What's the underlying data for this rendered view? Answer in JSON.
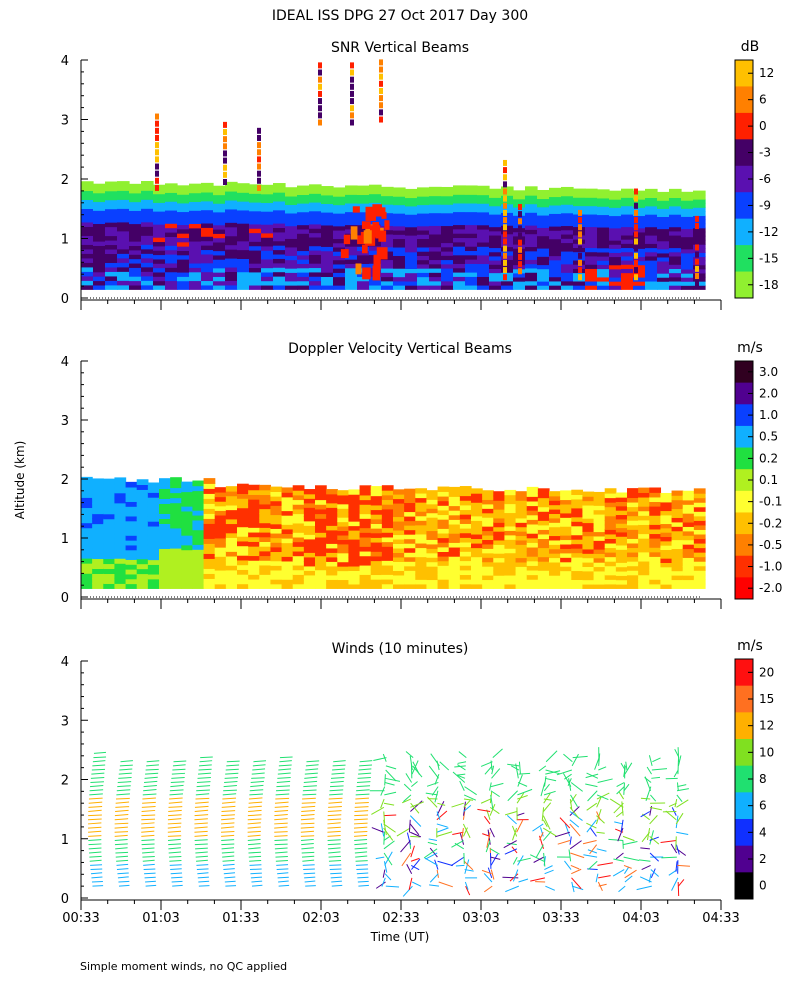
{
  "figure": {
    "title": "IDEAL ISS DPG  27 Oct 2017 Day 300",
    "ylabel": "Altitude (km)",
    "xlabel": "Time (UT)",
    "footnote": "Simple moment winds, no QC applied"
  },
  "chart_data": [
    {
      "type": "heatmap",
      "title": "SNR Vertical Beams",
      "colorbar_unit": "dB",
      "colorbar_ticks": [
        "12",
        "6",
        "0",
        "-3",
        "-6",
        "-9",
        "-12",
        "-15",
        "-18"
      ],
      "colorbar_colors": [
        "#ffc000",
        "#ff8000",
        "#ff2000",
        "#440066",
        "#5a10b0",
        "#0a40ff",
        "#10b0ff",
        "#20e060",
        "#90f030"
      ],
      "ylim": [
        0,
        4
      ],
      "yticks": [
        "0",
        "1",
        "2",
        "3",
        "4"
      ],
      "xlim": [
        "00:33",
        "04:33"
      ]
    },
    {
      "type": "heatmap",
      "title": "Doppler Velocity Vertical Beams",
      "colorbar_unit": "m/s",
      "colorbar_ticks": [
        "3.0",
        "2.0",
        "1.0",
        "0.5",
        "0.2",
        "0.1",
        "-0.1",
        "-0.2",
        "-0.5",
        "-1.0",
        "-2.0"
      ],
      "colorbar_colors": [
        "#300020",
        "#500090",
        "#0a40ff",
        "#10b0ff",
        "#20e040",
        "#b0f020",
        "#ffff30",
        "#ffc000",
        "#ff8000",
        "#ff3000",
        "#ff0000"
      ],
      "ylim": [
        0,
        4
      ],
      "yticks": [
        "0",
        "1",
        "2",
        "3",
        "4"
      ],
      "xlim": [
        "00:33",
        "04:33"
      ]
    },
    {
      "type": "scatter",
      "title": "Winds (10 minutes)",
      "colorbar_unit": "m/s",
      "colorbar_ticks": [
        "20",
        "15",
        "12",
        "10",
        "8",
        "6",
        "4",
        "2",
        "0"
      ],
      "colorbar_colors": [
        "#ff1010",
        "#ff7020",
        "#ffb000",
        "#80e020",
        "#20e070",
        "#10b0ff",
        "#1030ff",
        "#500090",
        "#000000"
      ],
      "ylim": [
        0,
        4
      ],
      "yticks": [
        "0",
        "1",
        "2",
        "3",
        "4"
      ],
      "xticks": [
        "00:33",
        "01:03",
        "01:33",
        "02:03",
        "02:33",
        "03:03",
        "03:33",
        "04:03",
        "04:33"
      ],
      "xlim": [
        "00:33",
        "04:33"
      ]
    }
  ]
}
